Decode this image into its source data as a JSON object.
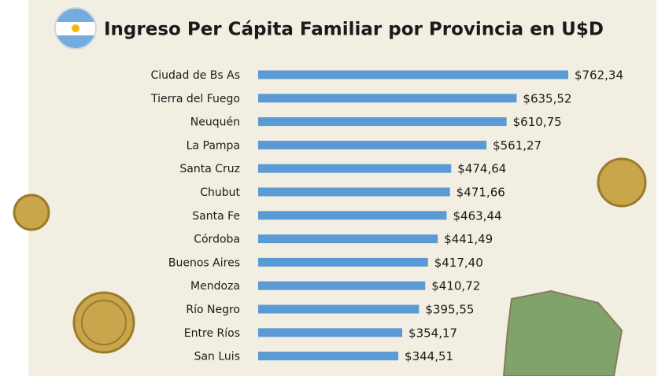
{
  "chart_data": {
    "type": "bar",
    "orientation": "horizontal",
    "title": "Ingreso Per Cápita Familiar por Provincia en U$D",
    "categories": [
      "Ciudad de Bs As",
      "Tierra del Fuego",
      "Neuquén",
      "La Pampa",
      "Santa Cruz",
      "Chubut",
      "Santa Fe",
      "Córdoba",
      "Buenos Aires",
      "Mendoza",
      "Río Negro",
      "Entre Ríos",
      "San Luis"
    ],
    "values": [
      762.34,
      635.52,
      610.75,
      561.27,
      474.64,
      471.66,
      463.44,
      441.49,
      417.4,
      410.72,
      395.55,
      354.17,
      344.51
    ],
    "value_labels": [
      "$762,34",
      "$635,52",
      "$610,75",
      "$561,27",
      "$474,64",
      "$471,66",
      "$463,44",
      "$441,49",
      "$417,40",
      "$410,72",
      "$395,55",
      "$354,17",
      "$344,51"
    ],
    "color": "#5b9bd5"
  }
}
